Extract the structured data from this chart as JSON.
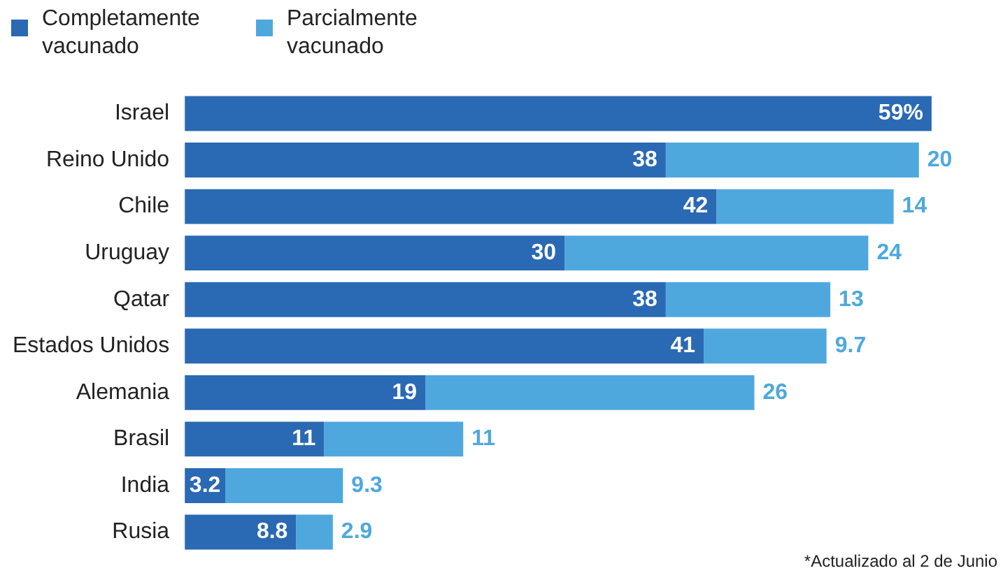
{
  "chart_data": {
    "type": "bar",
    "orientation": "horizontal",
    "stacked": true,
    "categories": [
      "Israel",
      "Reino Unido",
      "Chile",
      "Uruguay",
      "Qatar",
      "Estados Unidos",
      "Alemania",
      "Brasil",
      "India",
      "Rusia"
    ],
    "series": [
      {
        "name": "Completamente vacunado",
        "color": "#2a69b3",
        "values": [
          59,
          38,
          42,
          30,
          38,
          41,
          19,
          11,
          3.2,
          8.8
        ],
        "value_labels": [
          "59%",
          "38",
          "42",
          "30",
          "38",
          "41",
          "19",
          "11",
          "3.2",
          "8.8"
        ]
      },
      {
        "name": "Parcialmente vacunado",
        "color": "#4ea8de",
        "values": [
          null,
          20,
          14,
          24,
          13,
          9.7,
          26,
          11,
          9.3,
          2.9
        ],
        "value_labels": [
          null,
          "20",
          "14",
          "24",
          "13",
          "9.7",
          "26",
          "11",
          "9.3",
          "2.9"
        ]
      }
    ],
    "tick_labels": "y",
    "legend": "top left",
    "annotations": [
      "*Actualizado al 2 de Junio"
    ]
  }
}
